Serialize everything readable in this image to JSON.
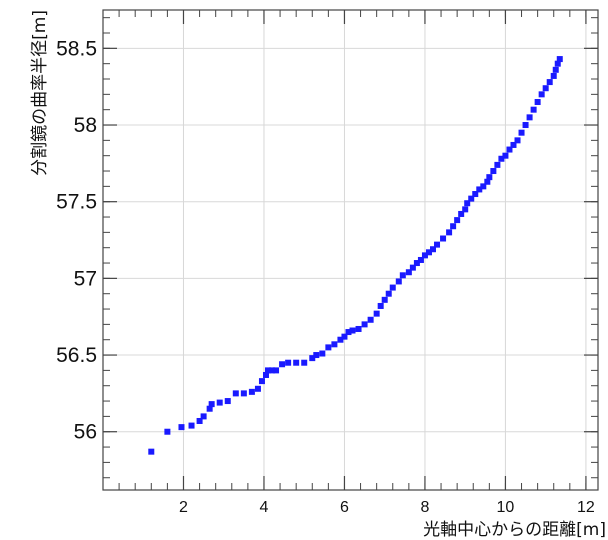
{
  "chart_data": {
    "type": "scatter",
    "xlabel": "光軸中心からの距離[m]",
    "ylabel": "分割鏡の曲率半径[m]",
    "xlim": [
      0.0,
      12.3
    ],
    "ylim": [
      55.62,
      58.75
    ],
    "x_ticks": [
      "2",
      "4",
      "6",
      "8",
      "10",
      "12"
    ],
    "y_ticks": [
      "56",
      "56.5",
      "57",
      "57.5",
      "58",
      "58.5"
    ],
    "grid": true,
    "marker_color": "#1a1aff",
    "series": [
      {
        "x": [
          1.2,
          1.6,
          1.95,
          2.2,
          2.4,
          2.5,
          2.65,
          2.7,
          2.9,
          3.1,
          3.3,
          3.5,
          3.7,
          3.85,
          3.95,
          4.05,
          4.1,
          4.2,
          4.3,
          4.45,
          4.6,
          4.8,
          5.0,
          5.2,
          5.3,
          5.45,
          5.6,
          5.75,
          5.9,
          6.0,
          6.1,
          6.2,
          6.35,
          6.5,
          6.65,
          6.8,
          6.9,
          7.0,
          7.1,
          7.2,
          7.35,
          7.45,
          7.6,
          7.7,
          7.8,
          7.9,
          8.0,
          8.1,
          8.2,
          8.3,
          8.45,
          8.6,
          8.7,
          8.8,
          8.9,
          9.0,
          9.05,
          9.15,
          9.25,
          9.35,
          9.45,
          9.55,
          9.6,
          9.7,
          9.8,
          9.9,
          10.0,
          10.1,
          10.2,
          10.3,
          10.4,
          10.5,
          10.6,
          10.7,
          10.8,
          10.9,
          11.0,
          11.1,
          11.2,
          11.25,
          11.3,
          11.35
        ],
        "y": [
          55.87,
          56.0,
          56.03,
          56.04,
          56.07,
          56.1,
          56.15,
          56.18,
          56.19,
          56.2,
          56.25,
          56.25,
          56.26,
          56.28,
          56.33,
          56.37,
          56.4,
          56.4,
          56.4,
          56.44,
          56.45,
          56.45,
          56.45,
          56.48,
          56.5,
          56.51,
          56.55,
          56.57,
          56.6,
          56.62,
          56.65,
          56.66,
          56.67,
          56.7,
          56.73,
          56.77,
          56.82,
          56.86,
          56.9,
          56.94,
          56.98,
          57.02,
          57.04,
          57.07,
          57.1,
          57.12,
          57.15,
          57.17,
          57.19,
          57.22,
          57.26,
          57.3,
          57.34,
          57.38,
          57.42,
          57.45,
          57.49,
          57.52,
          57.55,
          57.58,
          57.6,
          57.63,
          57.66,
          57.7,
          57.74,
          57.78,
          57.8,
          57.84,
          57.87,
          57.9,
          57.95,
          58.0,
          58.05,
          58.1,
          58.15,
          58.2,
          58.24,
          58.28,
          58.32,
          58.36,
          58.4,
          58.43
        ]
      }
    ]
  }
}
